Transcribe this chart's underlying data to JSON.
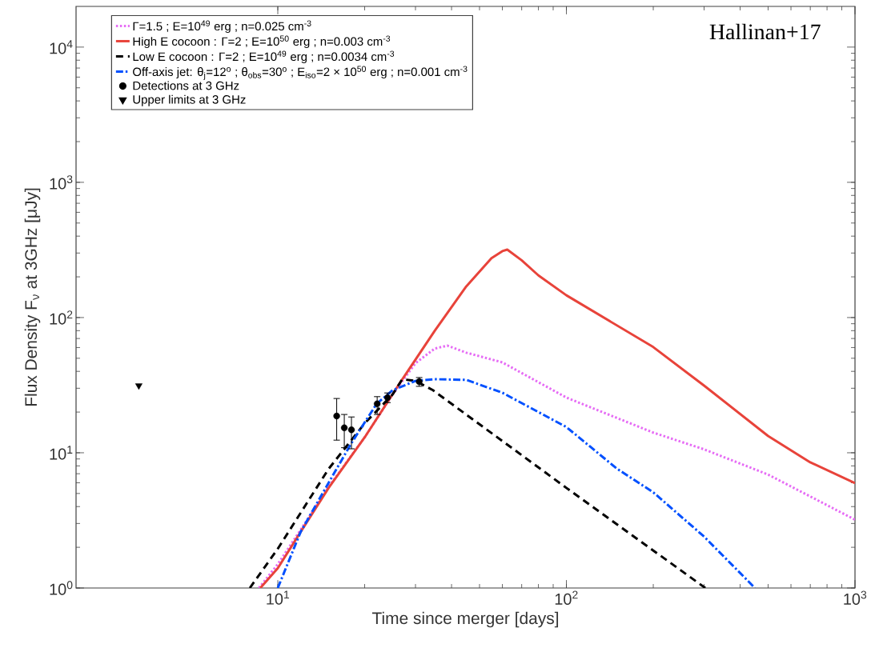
{
  "chart_data": {
    "type": "line",
    "annotations": [
      "Hallinan+17"
    ],
    "xlabel": "Time since merger [days]",
    "ylabel": "Flux Density F$_{ν}$ at 3GHz [μJy]",
    "log": "xy",
    "xlim": [
      2,
      1000
    ],
    "ylim": [
      1,
      20000
    ],
    "xticks": [
      {
        "value": 10,
        "label": "10$^{1}$"
      },
      {
        "value": 100,
        "label": "10$^{2}$"
      },
      {
        "value": 1000,
        "label": "10$^{3}$"
      }
    ],
    "yticks": [
      {
        "value": 1,
        "label": "10$^{0}$"
      },
      {
        "value": 10,
        "label": "10$^{1}$"
      },
      {
        "value": 100,
        "label": "10$^{2}$"
      },
      {
        "value": 1000,
        "label": "10$^{3}$"
      },
      {
        "value": 10000,
        "label": "10$^{4}$"
      }
    ],
    "legend": "top left",
    "grid": false,
    "series": [
      {
        "name": "Γ=1.5 ; E=10$^{49}$ erg ; n=0.025 cm$^{-3}$",
        "color": "#e66cf5",
        "line_style": "dotted",
        "x": [
          8.6,
          10,
          12,
          15,
          20,
          25,
          30,
          35,
          38.7,
          45,
          60,
          100,
          200,
          300,
          500,
          1000
        ],
        "values": [
          1,
          1.5,
          2.7,
          5.6,
          13,
          27,
          46,
          59,
          62,
          55,
          46.6,
          25.6,
          14.1,
          10.6,
          6.9,
          3.2
        ]
      },
      {
        "name": "High E cocoon : Γ=2 ; E=10$^{50}$ erg ; n=0.003 cm$^{-3}$",
        "color": "#e8433a",
        "line_style": "solid",
        "x": [
          8.7,
          10,
          12,
          15,
          20,
          26.7,
          35,
          45,
          55,
          60,
          62.4,
          70,
          80,
          100,
          200,
          300,
          500,
          700,
          1000
        ],
        "values": [
          1,
          1.4,
          2.6,
          5.5,
          13,
          33.7,
          80,
          170,
          275,
          310,
          318,
          265,
          205,
          146,
          60.5,
          31.4,
          13.3,
          8.5,
          5.96
        ]
      },
      {
        "name": "Low E cocoon : Γ=2 ; E=10$^{49}$ erg ; n=0.0034 cm$^{-3}$",
        "color": "#000000",
        "line_style": "dashed",
        "x": [
          8,
          10,
          15,
          20,
          25,
          27,
          30,
          34.5,
          100,
          303
        ],
        "values": [
          1,
          1.95,
          7.6,
          16.5,
          27,
          35,
          34,
          29,
          5.5,
          1
        ]
      },
      {
        "name": "Off-axis jet: θ$_{j}$=12$^{o}$ ; θ$_{obs}$=30$^{o}$ ; E$_{iso}$=2 × 10$^{50}$ erg ; n=0.001 cm$^{-3}$",
        "color": "#0050ff",
        "line_style": "dashdot",
        "x": [
          10,
          12,
          15,
          18,
          22,
          25,
          30,
          35,
          45,
          60,
          100,
          150,
          200,
          300,
          450
        ],
        "values": [
          1,
          2.6,
          6,
          11.8,
          23,
          29,
          34,
          35,
          34.6,
          27.8,
          15.5,
          7.6,
          5.1,
          2.4,
          1
        ]
      },
      {
        "name": "Detections at 3 GHz",
        "type": "scatter",
        "color": "#000000",
        "marker": "circle",
        "x": [
          16.0,
          17.0,
          18.0,
          22.1,
          24.0,
          30.9
        ],
        "values": [
          18.7,
          15.3,
          14.8,
          23,
          25.6,
          33.6
        ],
        "errors": [
          [
            12.4,
            25.2
          ],
          [
            10.9,
            19.2
          ],
          [
            10.7,
            18.4
          ],
          [
            19.2,
            26
          ],
          [
            23.5,
            27.7
          ],
          [
            31,
            36
          ]
        ]
      },
      {
        "name": "Upper limits at 3 GHz",
        "type": "scatter",
        "color": "#000000",
        "marker": "triangle",
        "x": [
          3.3
        ],
        "values": [
          31.4
        ]
      }
    ]
  }
}
